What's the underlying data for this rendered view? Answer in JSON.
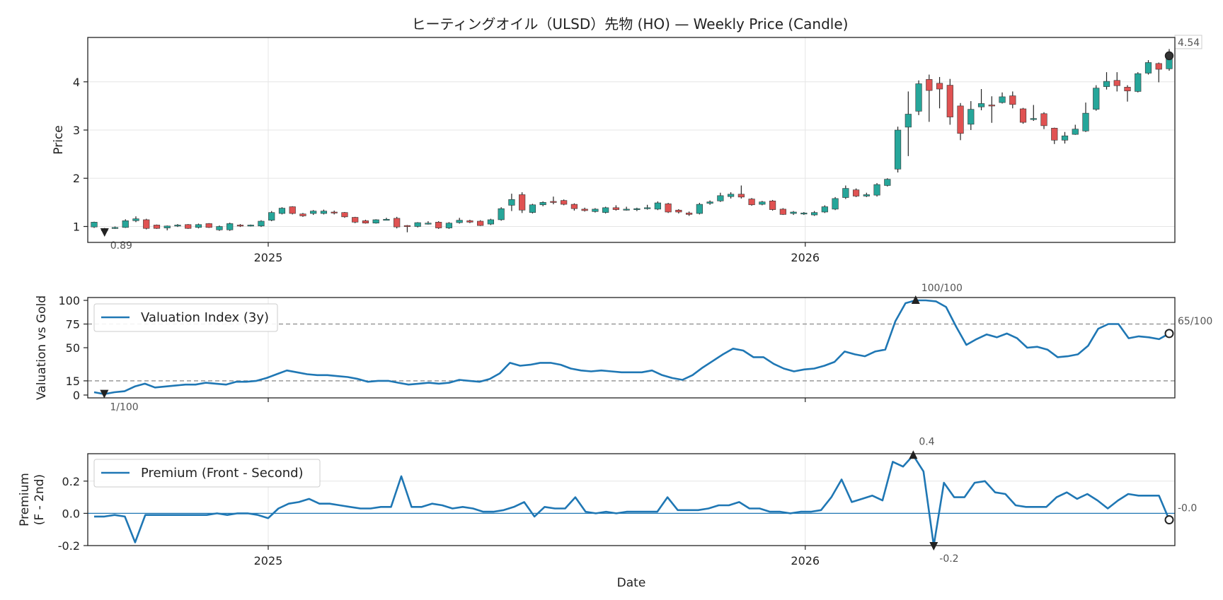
{
  "chart_data": [
    {
      "type": "candlestick",
      "title": "ヒーティングオイル（ULSD）先物 (HO) — Weekly Price (Candle)",
      "ylabel": "Price",
      "ylim": [
        0.67,
        4.92
      ],
      "yticks": [
        "1",
        "2",
        "3",
        "4"
      ],
      "xlim": [
        0,
        1
      ],
      "year_ticks": [
        {
          "label": "2025",
          "x": 0.166
        },
        {
          "label": "2026",
          "x": 0.66
        }
      ],
      "up_color": "#26a69a",
      "down_color": "#e05252",
      "candles": [
        [
          0.99,
          1.09,
          1.1,
          0.97
        ],
        [
          0.91,
          0.95,
          0.97,
          0.89
        ],
        [
          0.96,
          0.98,
          1.0,
          0.95
        ],
        [
          0.98,
          1.12,
          1.15,
          0.97
        ],
        [
          1.12,
          1.16,
          1.21,
          1.09
        ],
        [
          1.14,
          0.96,
          1.16,
          0.94
        ],
        [
          1.03,
          0.96,
          1.04,
          0.95
        ],
        [
          0.97,
          1.01,
          1.02,
          0.92
        ],
        [
          1.01,
          1.03,
          1.05,
          0.99
        ],
        [
          1.04,
          0.96,
          1.05,
          0.95
        ],
        [
          0.98,
          1.04,
          1.06,
          0.96
        ],
        [
          1.06,
          0.98,
          1.07,
          0.97
        ],
        [
          0.93,
          1.0,
          1.02,
          0.91
        ],
        [
          0.93,
          1.06,
          1.08,
          0.91
        ],
        [
          1.03,
          1.01,
          1.05,
          0.99
        ],
        [
          1.01,
          1.03,
          1.04,
          1.0
        ],
        [
          1.01,
          1.11,
          1.13,
          0.99
        ],
        [
          1.13,
          1.29,
          1.32,
          1.11
        ],
        [
          1.27,
          1.38,
          1.4,
          1.25
        ],
        [
          1.41,
          1.27,
          1.42,
          1.25
        ],
        [
          1.26,
          1.22,
          1.28,
          1.2
        ],
        [
          1.27,
          1.32,
          1.34,
          1.24
        ],
        [
          1.27,
          1.32,
          1.35,
          1.25
        ],
        [
          1.3,
          1.29,
          1.33,
          1.25
        ],
        [
          1.29,
          1.2,
          1.3,
          1.18
        ],
        [
          1.19,
          1.09,
          1.2,
          1.07
        ],
        [
          1.12,
          1.07,
          1.14,
          1.06
        ],
        [
          1.07,
          1.14,
          1.15,
          1.06
        ],
        [
          1.15,
          1.15,
          1.18,
          1.13
        ],
        [
          1.17,
          0.99,
          1.2,
          0.96
        ],
        [
          1.02,
          1.0,
          1.03,
          0.88
        ],
        [
          1.0,
          1.08,
          1.09,
          0.98
        ],
        [
          1.07,
          1.07,
          1.11,
          1.04
        ],
        [
          1.09,
          0.97,
          1.11,
          0.95
        ],
        [
          0.97,
          1.07,
          1.09,
          0.95
        ],
        [
          1.08,
          1.13,
          1.18,
          1.06
        ],
        [
          1.12,
          1.09,
          1.14,
          1.07
        ],
        [
          1.11,
          1.02,
          1.13,
          1.01
        ],
        [
          1.05,
          1.14,
          1.16,
          1.03
        ],
        [
          1.14,
          1.37,
          1.4,
          1.12
        ],
        [
          1.44,
          1.56,
          1.68,
          1.32
        ],
        [
          1.66,
          1.34,
          1.71,
          1.28
        ],
        [
          1.29,
          1.45,
          1.47,
          1.27
        ],
        [
          1.45,
          1.5,
          1.52,
          1.42
        ],
        [
          1.52,
          1.5,
          1.62,
          1.46
        ],
        [
          1.54,
          1.46,
          1.56,
          1.44
        ],
        [
          1.46,
          1.37,
          1.48,
          1.33
        ],
        [
          1.36,
          1.33,
          1.39,
          1.31
        ],
        [
          1.31,
          1.36,
          1.38,
          1.29
        ],
        [
          1.29,
          1.39,
          1.41,
          1.27
        ],
        [
          1.39,
          1.35,
          1.44,
          1.33
        ],
        [
          1.34,
          1.36,
          1.41,
          1.33
        ],
        [
          1.36,
          1.37,
          1.39,
          1.32
        ],
        [
          1.37,
          1.39,
          1.45,
          1.35
        ],
        [
          1.36,
          1.49,
          1.52,
          1.34
        ],
        [
          1.47,
          1.3,
          1.49,
          1.28
        ],
        [
          1.34,
          1.3,
          1.36,
          1.27
        ],
        [
          1.28,
          1.25,
          1.31,
          1.22
        ],
        [
          1.27,
          1.46,
          1.49,
          1.25
        ],
        [
          1.48,
          1.51,
          1.54,
          1.45
        ],
        [
          1.53,
          1.64,
          1.7,
          1.51
        ],
        [
          1.62,
          1.67,
          1.71,
          1.58
        ],
        [
          1.67,
          1.61,
          1.85,
          1.58
        ],
        [
          1.57,
          1.45,
          1.59,
          1.43
        ],
        [
          1.46,
          1.51,
          1.53,
          1.44
        ],
        [
          1.53,
          1.35,
          1.55,
          1.33
        ],
        [
          1.36,
          1.25,
          1.38,
          1.24
        ],
        [
          1.27,
          1.3,
          1.32,
          1.24
        ],
        [
          1.28,
          1.28,
          1.3,
          1.24
        ],
        [
          1.24,
          1.29,
          1.32,
          1.22
        ],
        [
          1.3,
          1.41,
          1.44,
          1.28
        ],
        [
          1.36,
          1.58,
          1.61,
          1.34
        ],
        [
          1.6,
          1.79,
          1.85,
          1.57
        ],
        [
          1.76,
          1.63,
          1.79,
          1.61
        ],
        [
          1.63,
          1.66,
          1.7,
          1.61
        ],
        [
          1.65,
          1.87,
          1.9,
          1.62
        ],
        [
          1.85,
          1.98,
          2.0,
          1.83
        ],
        [
          2.19,
          3.0,
          3.07,
          2.12
        ],
        [
          3.06,
          3.33,
          3.8,
          2.46
        ],
        [
          3.39,
          3.96,
          4.03,
          3.31
        ],
        [
          4.05,
          3.82,
          4.15,
          3.17
        ],
        [
          3.97,
          3.85,
          4.1,
          3.45
        ],
        [
          3.93,
          3.27,
          4.06,
          3.11
        ],
        [
          3.5,
          2.93,
          3.56,
          2.79
        ],
        [
          3.12,
          3.43,
          3.6,
          3.0
        ],
        [
          3.48,
          3.55,
          3.85,
          3.41
        ],
        [
          3.52,
          3.5,
          3.7,
          3.15
        ],
        [
          3.57,
          3.69,
          3.78,
          3.55
        ],
        [
          3.71,
          3.53,
          3.8,
          3.45
        ],
        [
          3.44,
          3.16,
          3.46,
          3.13
        ],
        [
          3.22,
          3.24,
          3.52,
          3.19
        ],
        [
          3.34,
          3.09,
          3.37,
          3.02
        ],
        [
          3.04,
          2.79,
          3.05,
          2.71
        ],
        [
          2.79,
          2.88,
          2.96,
          2.72
        ],
        [
          2.91,
          3.02,
          3.11,
          2.9
        ],
        [
          2.98,
          3.35,
          3.57,
          2.96
        ],
        [
          3.43,
          3.87,
          3.93,
          3.4
        ],
        [
          3.9,
          4.01,
          4.2,
          3.84
        ],
        [
          4.03,
          3.92,
          4.2,
          3.8
        ],
        [
          3.89,
          3.81,
          3.93,
          3.59
        ],
        [
          3.8,
          4.17,
          4.2,
          3.78
        ],
        [
          4.18,
          4.4,
          4.45,
          4.15
        ],
        [
          4.38,
          4.26,
          4.4,
          3.99
        ],
        [
          4.27,
          4.54,
          4.68,
          4.23
        ]
      ],
      "annotations": [
        {
          "text": "0.89",
          "kind": "min",
          "index": 1,
          "value": 0.89
        },
        {
          "text": "4.54",
          "kind": "last",
          "index": 103,
          "value": 4.54
        }
      ]
    },
    {
      "type": "line",
      "ylabel": "Valuation vs Gold",
      "ylim": [
        -3,
        103
      ],
      "yticks": [
        "0",
        "15",
        "50",
        "75",
        "100"
      ],
      "hlines": [
        15,
        75
      ],
      "series": [
        {
          "name": "Valuation Index (3y)",
          "color": "#1f77b4",
          "values": [
            3,
            1,
            3,
            4,
            9,
            12,
            8,
            9,
            10,
            11,
            11,
            13,
            12,
            11,
            14,
            14,
            15,
            18,
            22,
            26,
            24,
            22,
            21,
            21,
            20,
            19,
            17,
            14,
            15,
            15,
            13,
            11,
            12,
            13,
            12,
            13,
            16,
            15,
            14,
            17,
            23,
            34,
            31,
            32,
            34,
            34,
            32,
            28,
            26,
            25,
            26,
            25,
            24,
            24,
            24,
            26,
            21,
            18,
            16,
            21,
            29,
            36,
            43,
            49,
            47,
            40,
            40,
            33,
            28,
            25,
            27,
            28,
            31,
            35,
            46,
            43,
            41,
            46,
            48,
            78,
            97,
            100,
            100,
            99,
            93,
            72,
            53,
            59,
            64,
            61,
            65,
            60,
            50,
            51,
            48,
            40,
            41,
            43,
            52,
            70,
            75,
            75,
            60,
            62,
            61,
            59,
            65
          ]
        }
      ],
      "annotations": [
        {
          "text": "1/100",
          "kind": "min",
          "index": 1,
          "value": 1
        },
        {
          "text": "100/100",
          "kind": "max",
          "index": 81,
          "value": 100
        },
        {
          "text": "65/100",
          "kind": "last",
          "index": 106,
          "value": 65
        }
      ]
    },
    {
      "type": "line",
      "xlabel": "Date",
      "ylabel": "Premium",
      "ylabel2": "(F - 2nd)",
      "ylim": [
        -0.2,
        0.37
      ],
      "yticks": [
        "-0.2",
        "0.0",
        "0.2"
      ],
      "hlines": [
        0
      ],
      "series": [
        {
          "name": "Premium (Front - Second)",
          "color": "#1f77b4",
          "values": [
            -0.02,
            -0.02,
            -0.01,
            -0.02,
            -0.18,
            -0.01,
            -0.01,
            -0.01,
            -0.01,
            -0.01,
            -0.01,
            -0.01,
            0.0,
            -0.01,
            0.0,
            0.0,
            -0.01,
            -0.03,
            0.03,
            0.06,
            0.07,
            0.09,
            0.06,
            0.06,
            0.05,
            0.04,
            0.03,
            0.03,
            0.04,
            0.04,
            0.23,
            0.04,
            0.04,
            0.06,
            0.05,
            0.03,
            0.04,
            0.03,
            0.01,
            0.01,
            0.02,
            0.04,
            0.07,
            -0.02,
            0.04,
            0.03,
            0.03,
            0.1,
            0.01,
            0.0,
            0.01,
            0.0,
            0.01,
            0.01,
            0.01,
            0.01,
            0.1,
            0.02,
            0.02,
            0.02,
            0.03,
            0.05,
            0.05,
            0.07,
            0.03,
            0.03,
            0.01,
            0.01,
            0.0,
            0.01,
            0.01,
            0.02,
            0.1,
            0.21,
            0.07,
            0.09,
            0.11,
            0.08,
            0.32,
            0.29,
            0.36,
            0.26,
            -0.2,
            0.19,
            0.1,
            0.1,
            0.19,
            0.2,
            0.13,
            0.12,
            0.05,
            0.04,
            0.04,
            0.04,
            0.1,
            0.13,
            0.09,
            0.12,
            0.08,
            0.03,
            0.08,
            0.12,
            0.11,
            0.11,
            0.11,
            -0.04
          ]
        }
      ],
      "annotations": [
        {
          "text": "0.4",
          "kind": "max",
          "index": 80,
          "value": 0.36
        },
        {
          "text": "-0.2",
          "kind": "min",
          "index": 82,
          "value": -0.2
        },
        {
          "text": "-0.0",
          "kind": "last",
          "index": 105,
          "value": -0.04
        }
      ],
      "year_ticks": [
        {
          "label": "2025",
          "x": 0.166
        },
        {
          "label": "2026",
          "x": 0.66
        }
      ]
    }
  ]
}
